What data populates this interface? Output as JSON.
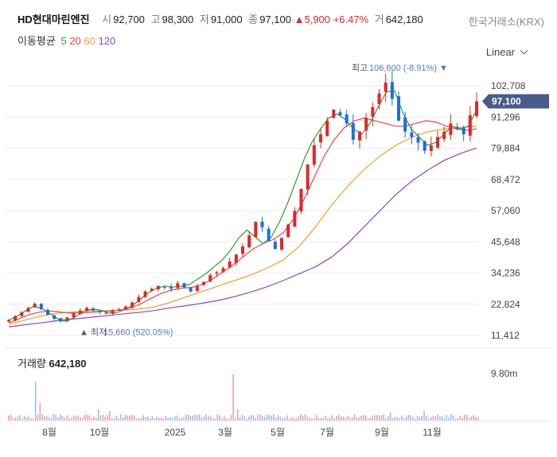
{
  "header": {
    "stock_name": "HD현대마린엔진",
    "open_label": "시",
    "open": "92,700",
    "high_label": "고",
    "high": "98,300",
    "low_label": "저",
    "low": "91,000",
    "close_label": "종",
    "close": "97,100",
    "change": "5,900",
    "change_pct": "+6.47%",
    "volume_label": "거",
    "volume": "642,180",
    "exchange": "한국거래소(KRX)"
  },
  "ma_legend": {
    "title": "이동평균",
    "items": [
      {
        "label": "5",
        "color": "#2ca02c"
      },
      {
        "label": "20",
        "color": "#e8474c"
      },
      {
        "label": "60",
        "color": "#f39c34"
      },
      {
        "label": "120",
        "color": "#8a44d6"
      }
    ]
  },
  "scale_mode": "Linear",
  "colors": {
    "up": "#e0262b",
    "down": "#1a6fe0",
    "marker": "#5876b8",
    "price_badge": "#4a5a8a"
  },
  "chart_data": {
    "type": "candlestick",
    "y_axis": {
      "ticks": [
        "102,708",
        "91,296",
        "79,884",
        "68,472",
        "57,060",
        "45,648",
        "34,236",
        "22,824",
        "11,412"
      ],
      "range": [
        11412,
        108000
      ]
    },
    "x_axis": {
      "ticks": [
        "8월",
        "10월",
        "2025",
        "3월",
        "5월",
        "7월",
        "9월",
        "11월"
      ]
    },
    "high_annotation": {
      "label": "최고",
      "value": "106,600",
      "pct": "(-8.91%)"
    },
    "low_annotation": {
      "label": "최저",
      "value": "15,660",
      "pct": "(520.05%)"
    },
    "current_price": "97,100",
    "close_series": [
      17000,
      18500,
      20000,
      21500,
      23000,
      21000,
      19000,
      17500,
      16500,
      18000,
      19500,
      20500,
      21500,
      20500,
      19800,
      19500,
      20500,
      21000,
      22000,
      23500,
      25500,
      27500,
      28500,
      29500,
      29000,
      28500,
      30500,
      29000,
      27500,
      29500,
      31000,
      33500,
      34500,
      36000,
      38500,
      41000,
      44000,
      48000,
      53000,
      51000,
      46000,
      43000,
      47000,
      52000,
      57000,
      65000,
      74000,
      81000,
      85000,
      90000,
      94000,
      92000,
      89000,
      83000,
      86000,
      91000,
      95000,
      100000,
      104000,
      98000,
      90000,
      86000,
      84000,
      82000,
      79000,
      81000,
      84000,
      86000,
      89000,
      87000,
      85000,
      92000,
      97100
    ],
    "ma5": [
      17000,
      18400,
      20300,
      22000,
      21400,
      19500,
      17400,
      16500,
      18000,
      20000,
      21000,
      20800,
      19700,
      19600,
      20700,
      22200,
      24500,
      27000,
      28600,
      29500,
      29100,
      29400,
      30000,
      32000,
      34000,
      36500,
      39000,
      42500,
      47000,
      50000,
      47500,
      45000,
      47500,
      53000,
      60000,
      68000,
      76000,
      82500,
      87000,
      91000,
      92500,
      90500,
      87000,
      85000,
      89000,
      95000,
      100500,
      101000,
      93000,
      87000,
      84000,
      81000,
      82000,
      85000,
      88000,
      87000,
      88000,
      94000
    ],
    "ma20": [
      16000,
      17500,
      19000,
      19900,
      20300,
      20000,
      19600,
      19600,
      19800,
      20100,
      20300,
      20700,
      21500,
      23000,
      25000,
      26800,
      28000,
      28700,
      29000,
      30000,
      32000,
      34500,
      37000,
      40000,
      43000,
      45000,
      46500,
      49000,
      54000,
      61000,
      69000,
      77000,
      83000,
      87500,
      90000,
      91000,
      90000,
      89000,
      88000,
      88000,
      89000,
      90000,
      89500,
      88000,
      87000,
      86500,
      87000
    ],
    "ma60": [
      15500,
      17000,
      18500,
      19500,
      20000,
      20300,
      20500,
      20700,
      21000,
      21800,
      23500,
      25500,
      27500,
      29500,
      31500,
      33500,
      36000,
      39000,
      44000,
      51000,
      59000,
      66000,
      72000,
      77000,
      81000,
      84000,
      86000,
      87000,
      87500,
      88000
    ],
    "ma120": [
      14500,
      15300,
      16000,
      16800,
      17400,
      18000,
      18600,
      19200,
      19800,
      20500,
      21500,
      22300,
      23200,
      24200,
      25600,
      27300,
      29200,
      31500,
      34000,
      36500,
      40000,
      45000,
      51000,
      57000,
      63000,
      68000,
      72000,
      75500,
      78000,
      80000
    ],
    "volume": {
      "label": "거래량",
      "value": "642,180",
      "axis_tick": "9.80m"
    }
  }
}
